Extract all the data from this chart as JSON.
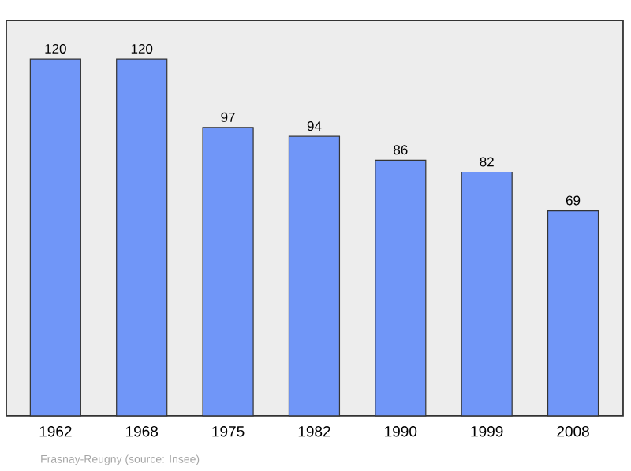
{
  "chart_data": {
    "type": "bar",
    "categories": [
      "1962",
      "1968",
      "1975",
      "1982",
      "1990",
      "1999",
      "2008"
    ],
    "values": [
      120,
      120,
      97,
      94,
      86,
      82,
      69
    ],
    "color": "#7096f8",
    "ylim": [
      0,
      133
    ],
    "data_labels": true,
    "tick_labels": "x",
    "annotations": [
      "Frasnay-Reugny   (source: Insee)"
    ]
  }
}
